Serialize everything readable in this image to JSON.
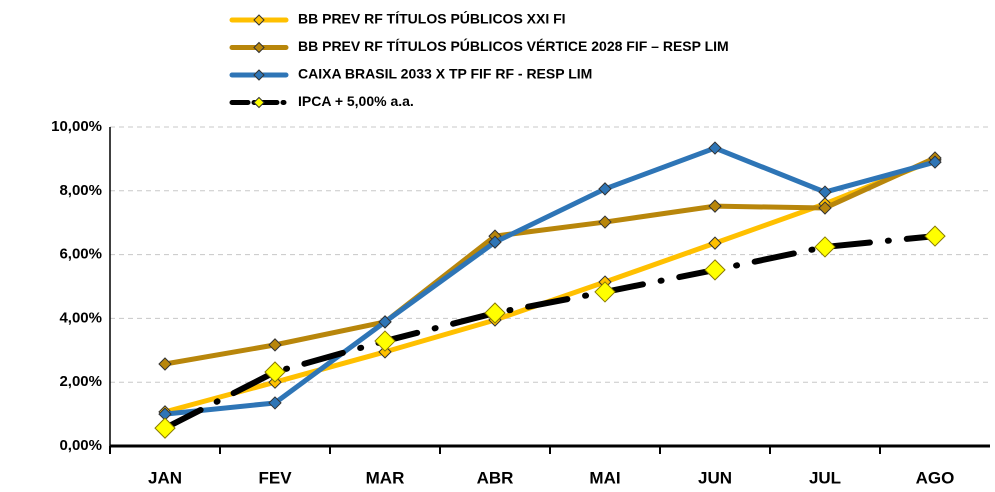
{
  "chart_data": {
    "type": "line",
    "categories": [
      "JAN",
      "FEV",
      "MAR",
      "ABR",
      "MAI",
      "JUN",
      "JUL",
      "AGO"
    ],
    "series": [
      {
        "name": "BB PREV RF TÍTULOS PÚBLICOS XXI FI",
        "color": "#ffc000",
        "values": [
          1.07,
          2.0,
          2.95,
          3.95,
          5.14,
          6.36,
          7.59,
          8.97
        ]
      },
      {
        "name": "BB PREV RF TÍTULOS PÚBLICOS VÉRTICE 2028 FIF – RESP LIM",
        "color": "#b8860b",
        "values": [
          2.57,
          3.17,
          3.89,
          6.58,
          7.02,
          7.52,
          7.46,
          9.03
        ]
      },
      {
        "name": "CAIXA BRASIL 2033 X TP FIF RF - RESP LIM",
        "color": "#2e75b6",
        "values": [
          1.0,
          1.35,
          3.89,
          6.39,
          8.06,
          9.34,
          7.96,
          8.9
        ]
      },
      {
        "name": "IPCA + 5,00% a.a.",
        "color": "#000000",
        "values": [
          0.56,
          2.32,
          3.29,
          4.17,
          4.83,
          5.52,
          6.24,
          6.58
        ]
      }
    ],
    "ylim": [
      0,
      10
    ],
    "yticks": [
      {
        "value": 0,
        "label": "0,00%"
      },
      {
        "value": 2,
        "label": "2,00%"
      },
      {
        "value": 4,
        "label": "4,00%"
      },
      {
        "value": 6,
        "label": "6,00%"
      },
      {
        "value": 8,
        "label": "8,00%"
      },
      {
        "value": 10,
        "label": "10,00%"
      }
    ],
    "grid": true,
    "legend": "top"
  }
}
